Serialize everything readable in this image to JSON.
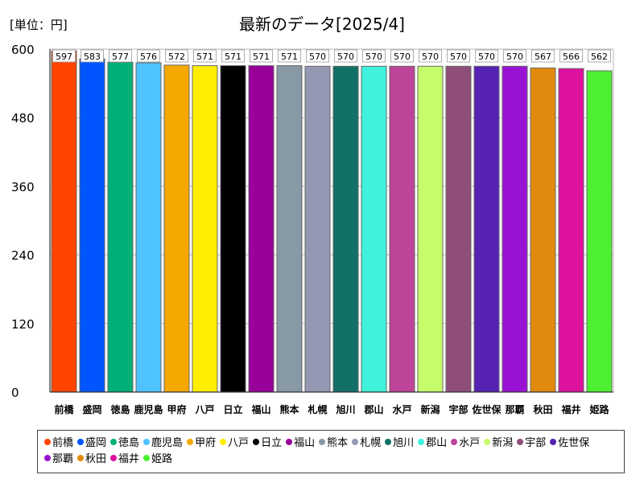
{
  "unit_label": "[単位：円]",
  "chart_data": {
    "type": "bar",
    "title": "最新のデータ[2025/4]",
    "ylim": [
      0,
      600
    ],
    "yticks": [
      0,
      120,
      240,
      360,
      480,
      600
    ],
    "categories": [
      "前橋",
      "盛岡",
      "徳島",
      "鹿児島",
      "甲府",
      "八戸",
      "日立",
      "福山",
      "熊本",
      "札幌",
      "旭川",
      "郡山",
      "水戸",
      "新潟",
      "宇部",
      "佐世保",
      "那覇",
      "秋田",
      "福井",
      "姫路"
    ],
    "values": [
      597,
      583,
      577,
      576,
      572,
      571,
      571,
      571,
      571,
      570,
      570,
      570,
      570,
      570,
      570,
      570,
      570,
      567,
      566,
      562
    ],
    "colors": [
      "#ff4500",
      "#0055ff",
      "#00b078",
      "#4fc3ff",
      "#f5a800",
      "#ffee00",
      "#000000",
      "#990099",
      "#8899a6",
      "#9598b3",
      "#127066",
      "#40f2dc",
      "#be4499",
      "#c6fb6b",
      "#8f4e7a",
      "#5522b3",
      "#9a12d4",
      "#e28a0e",
      "#dd119e",
      "#4cf030"
    ],
    "legend_position": "bottom"
  }
}
